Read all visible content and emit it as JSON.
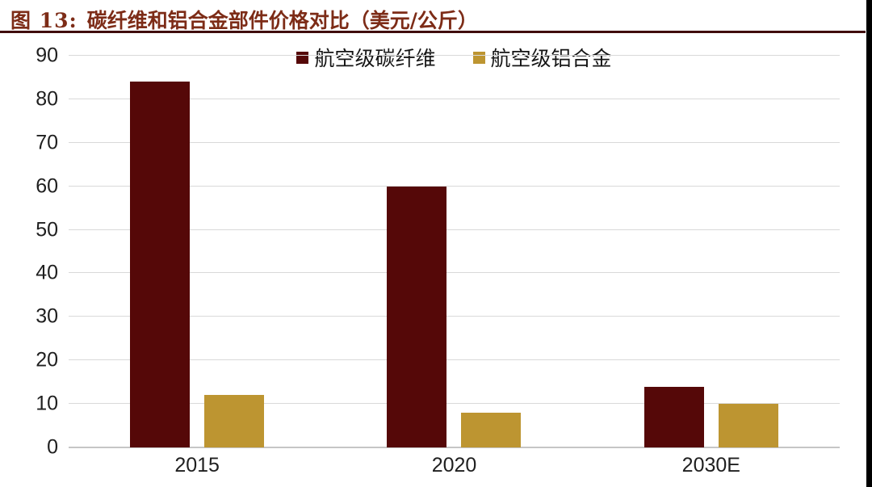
{
  "header": {
    "figure_label": "图 13:",
    "title": "碳纤维和铝合金部件价格对比（美元/公斤）",
    "title_color": "#7d2c17",
    "rule_color": "#400d0d"
  },
  "chart_data": {
    "type": "bar",
    "title": "碳纤维和铝合金部件价格对比（美元/公斤）",
    "xlabel": "",
    "ylabel": "",
    "categories": [
      "2015",
      "2020",
      "2030E"
    ],
    "series": [
      {
        "name": "航空级碳纤维",
        "slug": "carbon-fiber",
        "color": "#550808",
        "values": [
          84,
          60,
          14
        ]
      },
      {
        "name": "航空级铝合金",
        "slug": "aluminum-alloy",
        "color": "#bd9531",
        "values": [
          12,
          8,
          10
        ]
      }
    ],
    "ylim": [
      0,
      90
    ],
    "yticks": [
      0,
      10,
      20,
      30,
      40,
      50,
      60,
      70,
      80,
      90
    ],
    "grid": "horizontal",
    "legend_position": "top-center"
  },
  "colors": {
    "background": "#ffffff",
    "gridline": "#d9d9d9",
    "axis_line": "#c6c6c6",
    "tick_text": "#1f1f1f",
    "right_edge_strip": "#000000"
  }
}
